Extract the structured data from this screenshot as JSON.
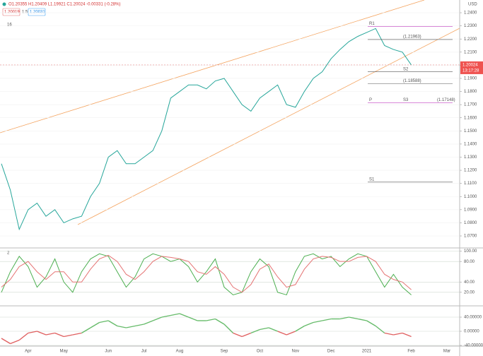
{
  "chart_data": [
    {
      "type": "line",
      "title": "O1.20355 H1.20409 L1.19921 C1.20024 -0.00331 (-0.28%)",
      "inputs": [
        "1.20019",
        "1.5",
        "1.20031"
      ],
      "indicator_label": "16",
      "currency": "USD",
      "last_price_label": "1.20024",
      "countdown": "13:17:28",
      "categories": [
        null,
        null,
        null,
        "Apr",
        null,
        null,
        null,
        "May",
        null,
        null,
        null,
        null,
        "Jun",
        null,
        null,
        null,
        "Jul",
        null,
        null,
        null,
        "Aug",
        null,
        null,
        null,
        null,
        "Sep",
        null,
        null,
        null,
        "Oct",
        null,
        null,
        null,
        "Nov",
        null,
        null,
        null,
        "Dec",
        null,
        null,
        null,
        "2021",
        null,
        null,
        null,
        null,
        "Feb",
        null,
        null,
        null,
        "Mar"
      ],
      "values": [
        1.125,
        1.105,
        1.075,
        1.09,
        1.095,
        1.085,
        1.09,
        1.08,
        1.083,
        1.085,
        1.1,
        1.11,
        1.13,
        1.135,
        1.125,
        1.125,
        1.13,
        1.135,
        1.15,
        1.175,
        1.18,
        1.185,
        1.185,
        1.182,
        1.188,
        1.19,
        1.18,
        1.17,
        1.165,
        1.175,
        1.18,
        1.185,
        1.17,
        1.168,
        1.18,
        1.19,
        1.195,
        1.205,
        1.212,
        1.218,
        1.222,
        1.225,
        1.228,
        1.215,
        1.212,
        1.21,
        1.20024,
        null,
        null,
        null,
        null
      ],
      "color": "#26a69a",
      "ylim": [
        1.0614,
        1.2497
      ],
      "yticks": [
        {
          "value": 1.07,
          "label": "1.0700"
        },
        {
          "value": 1.08,
          "label": "1.0800"
        },
        {
          "value": 1.09,
          "label": "1.0900"
        },
        {
          "value": 1.1,
          "label": "1.1000"
        },
        {
          "value": 1.11,
          "label": "1.1100"
        },
        {
          "value": 1.12,
          "label": "1.1200"
        },
        {
          "value": 1.13,
          "label": "1.1300"
        },
        {
          "value": 1.14,
          "label": "1.1400"
        },
        {
          "value": 1.15,
          "label": "1.1500"
        },
        {
          "value": 1.16,
          "label": "1.1600"
        },
        {
          "value": 1.17,
          "label": "1.1700"
        },
        {
          "value": 1.18,
          "label": "1.1800"
        },
        {
          "value": 1.19,
          "label": "1.1900"
        },
        {
          "value": 1.2,
          "label": "1.2000"
        },
        {
          "value": 1.21,
          "label": "1.2100"
        },
        {
          "value": 1.22,
          "label": "1.2200"
        },
        {
          "value": 1.23,
          "label": "1.2300"
        },
        {
          "value": 1.24,
          "label": "1.2400"
        }
      ],
      "grid": true,
      "annotations": [
        {
          "texts": [
            "R1"
          ],
          "value": 1.2295,
          "color": "#c040c0"
        },
        {
          "texts": [
            "",
            "(1.21963)"
          ],
          "value": 1.21963,
          "color": "#555555"
        },
        {
          "texts": [
            "",
            "S2"
          ],
          "value": 1.195,
          "color": "#555555"
        },
        {
          "texts": [
            "",
            "(1.18588)"
          ],
          "value": 1.18588,
          "color": "#555555"
        },
        {
          "texts": [
            "P",
            "S3",
            "(1.17148)"
          ],
          "value": 1.17148,
          "color": "#c040c0"
        },
        {
          "texts": [
            "S1"
          ],
          "value": 1.111,
          "color": "#555555"
        }
      ]
    },
    {
      "type": "line",
      "label": "2",
      "series": [
        {
          "color": "#4caf50",
          "values": [
            20,
            60,
            90,
            70,
            30,
            50,
            85,
            40,
            20,
            60,
            85,
            95,
            90,
            60,
            30,
            50,
            85,
            95,
            90,
            80,
            85,
            70,
            40,
            60,
            85,
            30,
            15,
            20,
            60,
            85,
            70,
            20,
            15,
            60,
            90,
            95,
            85,
            90,
            70,
            85,
            95,
            90,
            60,
            30,
            55,
            30,
            15
          ]
        },
        {
          "color": "#e57373",
          "values": [
            30,
            45,
            70,
            80,
            60,
            45,
            60,
            60,
            40,
            40,
            65,
            85,
            92,
            80,
            55,
            45,
            60,
            80,
            90,
            88,
            85,
            80,
            60,
            55,
            70,
            55,
            30,
            20,
            35,
            65,
            75,
            50,
            30,
            35,
            65,
            85,
            90,
            88,
            80,
            80,
            88,
            90,
            80,
            55,
            45,
            40,
            25
          ]
        }
      ],
      "ylim": [
        -5,
        105
      ],
      "yticks": [
        {
          "value": 20,
          "label": "20.00"
        },
        {
          "value": 40,
          "label": "40.00"
        },
        {
          "value": 80,
          "label": "80.00"
        },
        {
          "value": 100,
          "label": "100.00"
        }
      ],
      "grid": true
    },
    {
      "type": "momentum",
      "values": [
        -20,
        -35,
        -25,
        -5,
        0,
        -10,
        -5,
        -15,
        -10,
        -5,
        10,
        25,
        30,
        15,
        10,
        15,
        20,
        30,
        40,
        45,
        50,
        40,
        30,
        30,
        35,
        20,
        -5,
        -15,
        -5,
        5,
        10,
        0,
        -10,
        0,
        15,
        25,
        30,
        35,
        35,
        40,
        35,
        30,
        15,
        -5,
        -10,
        -5,
        -15
      ],
      "colors": {
        "positive": "#66bb6a",
        "negative": "#e06060"
      },
      "ylim": [
        -42,
        70
      ],
      "yticks": [
        {
          "value": -40,
          "label": "-40.00000"
        },
        {
          "value": 0,
          "label": "0.00000"
        },
        {
          "value": 40,
          "label": "40.00000"
        }
      ],
      "grid": true
    }
  ]
}
